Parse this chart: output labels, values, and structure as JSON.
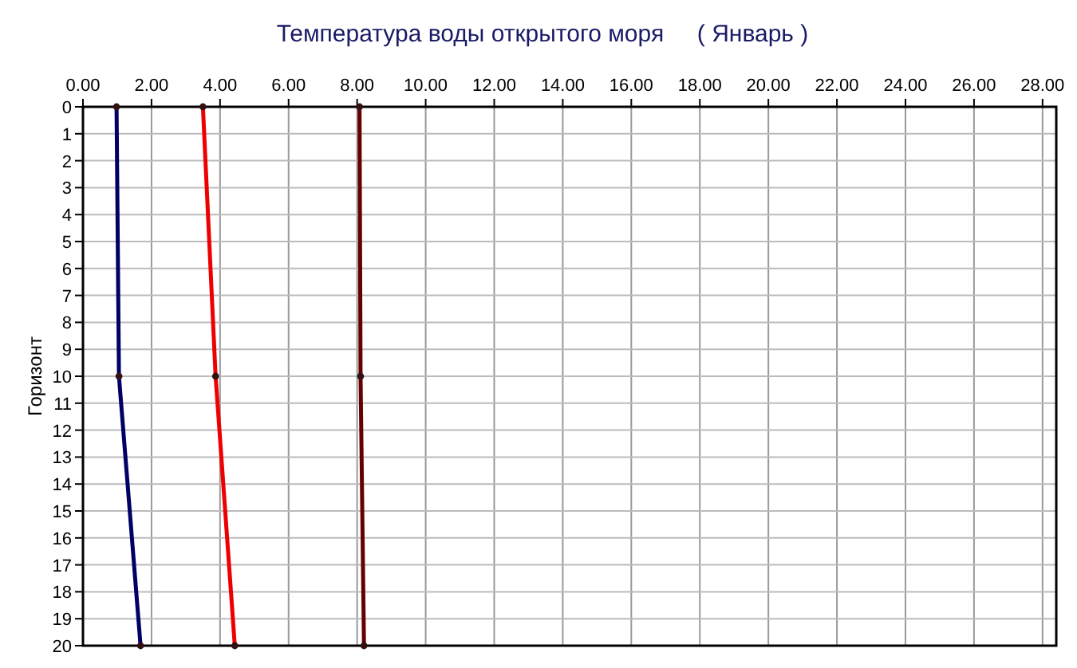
{
  "chart_data": {
    "type": "line",
    "title": "Температура воды открытого моря     ( Январь )",
    "ylabel": "Горизонт",
    "series": [
      {
        "color": "#000066",
        "x": [
          0.98,
          1.05,
          1.68
        ],
        "values": [
          0,
          10,
          20
        ]
      },
      {
        "color": "#ee0000",
        "x": [
          3.5,
          3.87,
          4.43
        ],
        "values": [
          0,
          10,
          20
        ]
      },
      {
        "color": "#660000",
        "x": [
          8.07,
          8.1,
          8.2
        ],
        "values": [
          0,
          10,
          20
        ]
      }
    ],
    "xlim": [
      0,
      28.4
    ],
    "ylim": [
      20,
      0
    ],
    "xticks": [
      {
        "value": 0,
        "label": "0.00"
      },
      {
        "value": 2,
        "label": "2.00"
      },
      {
        "value": 4,
        "label": "4.00"
      },
      {
        "value": 6,
        "label": "6.00"
      },
      {
        "value": 8,
        "label": "8.00"
      },
      {
        "value": 10,
        "label": "10.00"
      },
      {
        "value": 12,
        "label": "12.00"
      },
      {
        "value": 14,
        "label": "14.00"
      },
      {
        "value": 16,
        "label": "16.00"
      },
      {
        "value": 18,
        "label": "18.00"
      },
      {
        "value": 20,
        "label": "20.00"
      },
      {
        "value": 22,
        "label": "22.00"
      },
      {
        "value": 24,
        "label": "24.00"
      },
      {
        "value": 26,
        "label": "26.00"
      },
      {
        "value": 28,
        "label": "28.00"
      }
    ],
    "yticks": [
      0,
      1,
      2,
      3,
      4,
      5,
      6,
      7,
      8,
      9,
      10,
      11,
      12,
      13,
      14,
      15,
      16,
      17,
      18,
      19,
      20
    ],
    "grid": true,
    "marker": "circle",
    "line_style": "solid"
  }
}
